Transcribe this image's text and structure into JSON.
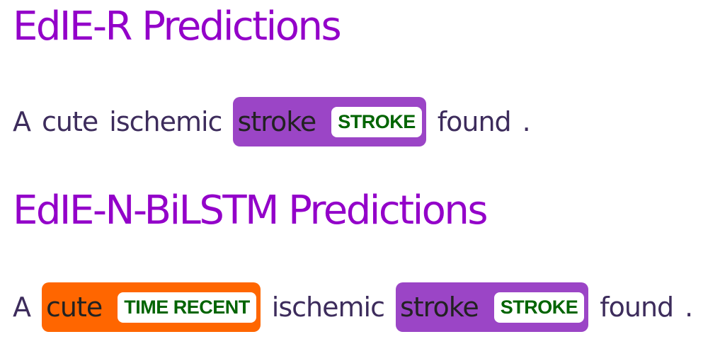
{
  "colors": {
    "heading": "#9300c9",
    "sentence_text": "#3d2c5c",
    "label_text": "#006400",
    "stroke_entity_bg": "#9b45c6",
    "time_recent_entity_bg": "#ff6600"
  },
  "sections": [
    {
      "title": "EdIE-R Predictions",
      "tokens": [
        {
          "text": "A"
        },
        {
          "text": "cute"
        },
        {
          "text": "ischemic"
        },
        {
          "text": "stroke",
          "label": "STROKE"
        },
        {
          "text": "found"
        },
        {
          "text": "."
        }
      ]
    },
    {
      "title": "EdIE-N-BiLSTM Predictions",
      "tokens": [
        {
          "text": "A"
        },
        {
          "text": "cute",
          "label": "TIME RECENT"
        },
        {
          "text": "ischemic"
        },
        {
          "text": "stroke",
          "label": "STROKE"
        },
        {
          "text": "found"
        },
        {
          "text": "."
        }
      ]
    }
  ]
}
